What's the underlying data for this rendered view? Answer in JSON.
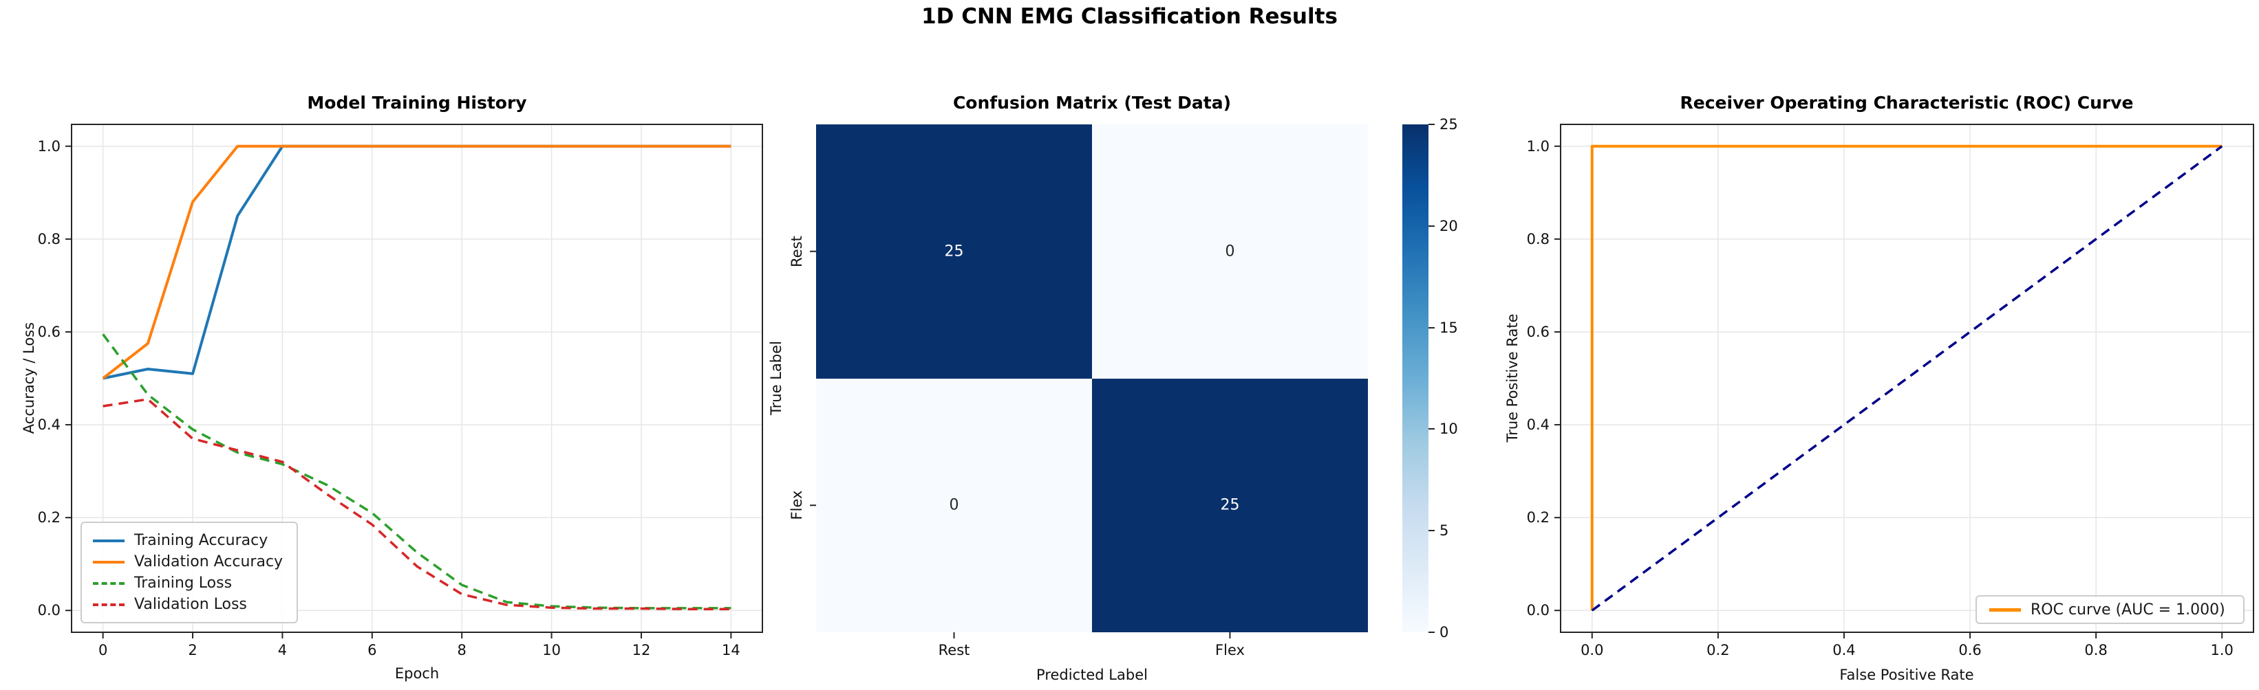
{
  "suptitle": "1D CNN EMG Classification Results",
  "colors": {
    "train_acc": "#1f77b4",
    "val_acc": "#ff7f0e",
    "train_loss": "#2ca02c",
    "val_loss": "#d62728",
    "roc_curve": "#ff8c00",
    "chance_line": "#00008b",
    "heat_dark": "#08306b",
    "heat_light": "#f7fbff",
    "grid": "#e6e6e6",
    "spine": "#262626"
  },
  "chart_data": [
    {
      "type": "line",
      "title": "Model Training History",
      "xlabel": "Epoch",
      "ylabel": "Accuracy / Loss",
      "x": [
        0,
        1,
        2,
        3,
        4,
        5,
        6,
        7,
        8,
        9,
        10,
        11,
        12,
        13,
        14
      ],
      "series": [
        {
          "name": "Training Accuracy",
          "color": "#1f77b4",
          "style": "solid",
          "values": [
            0.5,
            0.52,
            0.51,
            0.85,
            1.0,
            1.0,
            1.0,
            1.0,
            1.0,
            1.0,
            1.0,
            1.0,
            1.0,
            1.0,
            1.0
          ]
        },
        {
          "name": "Validation Accuracy",
          "color": "#ff7f0e",
          "style": "solid",
          "values": [
            0.5,
            0.575,
            0.88,
            1.0,
            1.0,
            1.0,
            1.0,
            1.0,
            1.0,
            1.0,
            1.0,
            1.0,
            1.0,
            1.0,
            1.0
          ]
        },
        {
          "name": "Training Loss",
          "color": "#2ca02c",
          "style": "dashed",
          "values": [
            0.595,
            0.465,
            0.39,
            0.34,
            0.315,
            0.27,
            0.21,
            0.125,
            0.055,
            0.018,
            0.009,
            0.006,
            0.005,
            0.005,
            0.005
          ]
        },
        {
          "name": "Validation Loss",
          "color": "#d62728",
          "style": "dashed",
          "values": [
            0.44,
            0.455,
            0.37,
            0.345,
            0.32,
            0.25,
            0.185,
            0.095,
            0.035,
            0.012,
            0.006,
            0.004,
            0.004,
            0.003,
            0.003
          ]
        }
      ],
      "xlim": [
        -0.7,
        14.7
      ],
      "ylim": [
        -0.047,
        1.047
      ],
      "xticks": [
        0,
        2,
        4,
        6,
        8,
        10,
        12,
        14
      ],
      "yticks": [
        0.0,
        0.2,
        0.4,
        0.6,
        0.8,
        1.0
      ],
      "grid": true,
      "legend_position": "lower left"
    },
    {
      "type": "heatmap",
      "title": "Confusion Matrix (Test Data)",
      "xlabel": "Predicted Label",
      "ylabel": "True Label",
      "categories": [
        "Rest",
        "Flex"
      ],
      "matrix": [
        [
          25,
          0
        ],
        [
          0,
          25
        ]
      ],
      "colormap": "Blues",
      "vmin": 0,
      "vmax": 25,
      "colorbar_ticks": [
        0,
        5,
        10,
        15,
        20,
        25
      ]
    },
    {
      "type": "line",
      "title": "Receiver Operating Characteristic (ROC) Curve",
      "xlabel": "False Positive Rate",
      "ylabel": "True Positive Rate",
      "series": [
        {
          "name": "ROC curve (AUC = 1.000)",
          "color": "#ff8c00",
          "style": "solid",
          "x": [
            0,
            0,
            1
          ],
          "y": [
            0,
            1,
            1
          ]
        },
        {
          "name": "chance diagonal",
          "color": "#00008b",
          "style": "dashed",
          "x": [
            0,
            1
          ],
          "y": [
            0,
            1
          ]
        }
      ],
      "xlim": [
        -0.05,
        1.05
      ],
      "ylim": [
        -0.047,
        1.047
      ],
      "xticks": [
        0.0,
        0.2,
        0.4,
        0.6,
        0.8,
        1.0
      ],
      "yticks": [
        0.0,
        0.2,
        0.4,
        0.6,
        0.8,
        1.0
      ],
      "grid": true,
      "legend_position": "lower right"
    }
  ]
}
